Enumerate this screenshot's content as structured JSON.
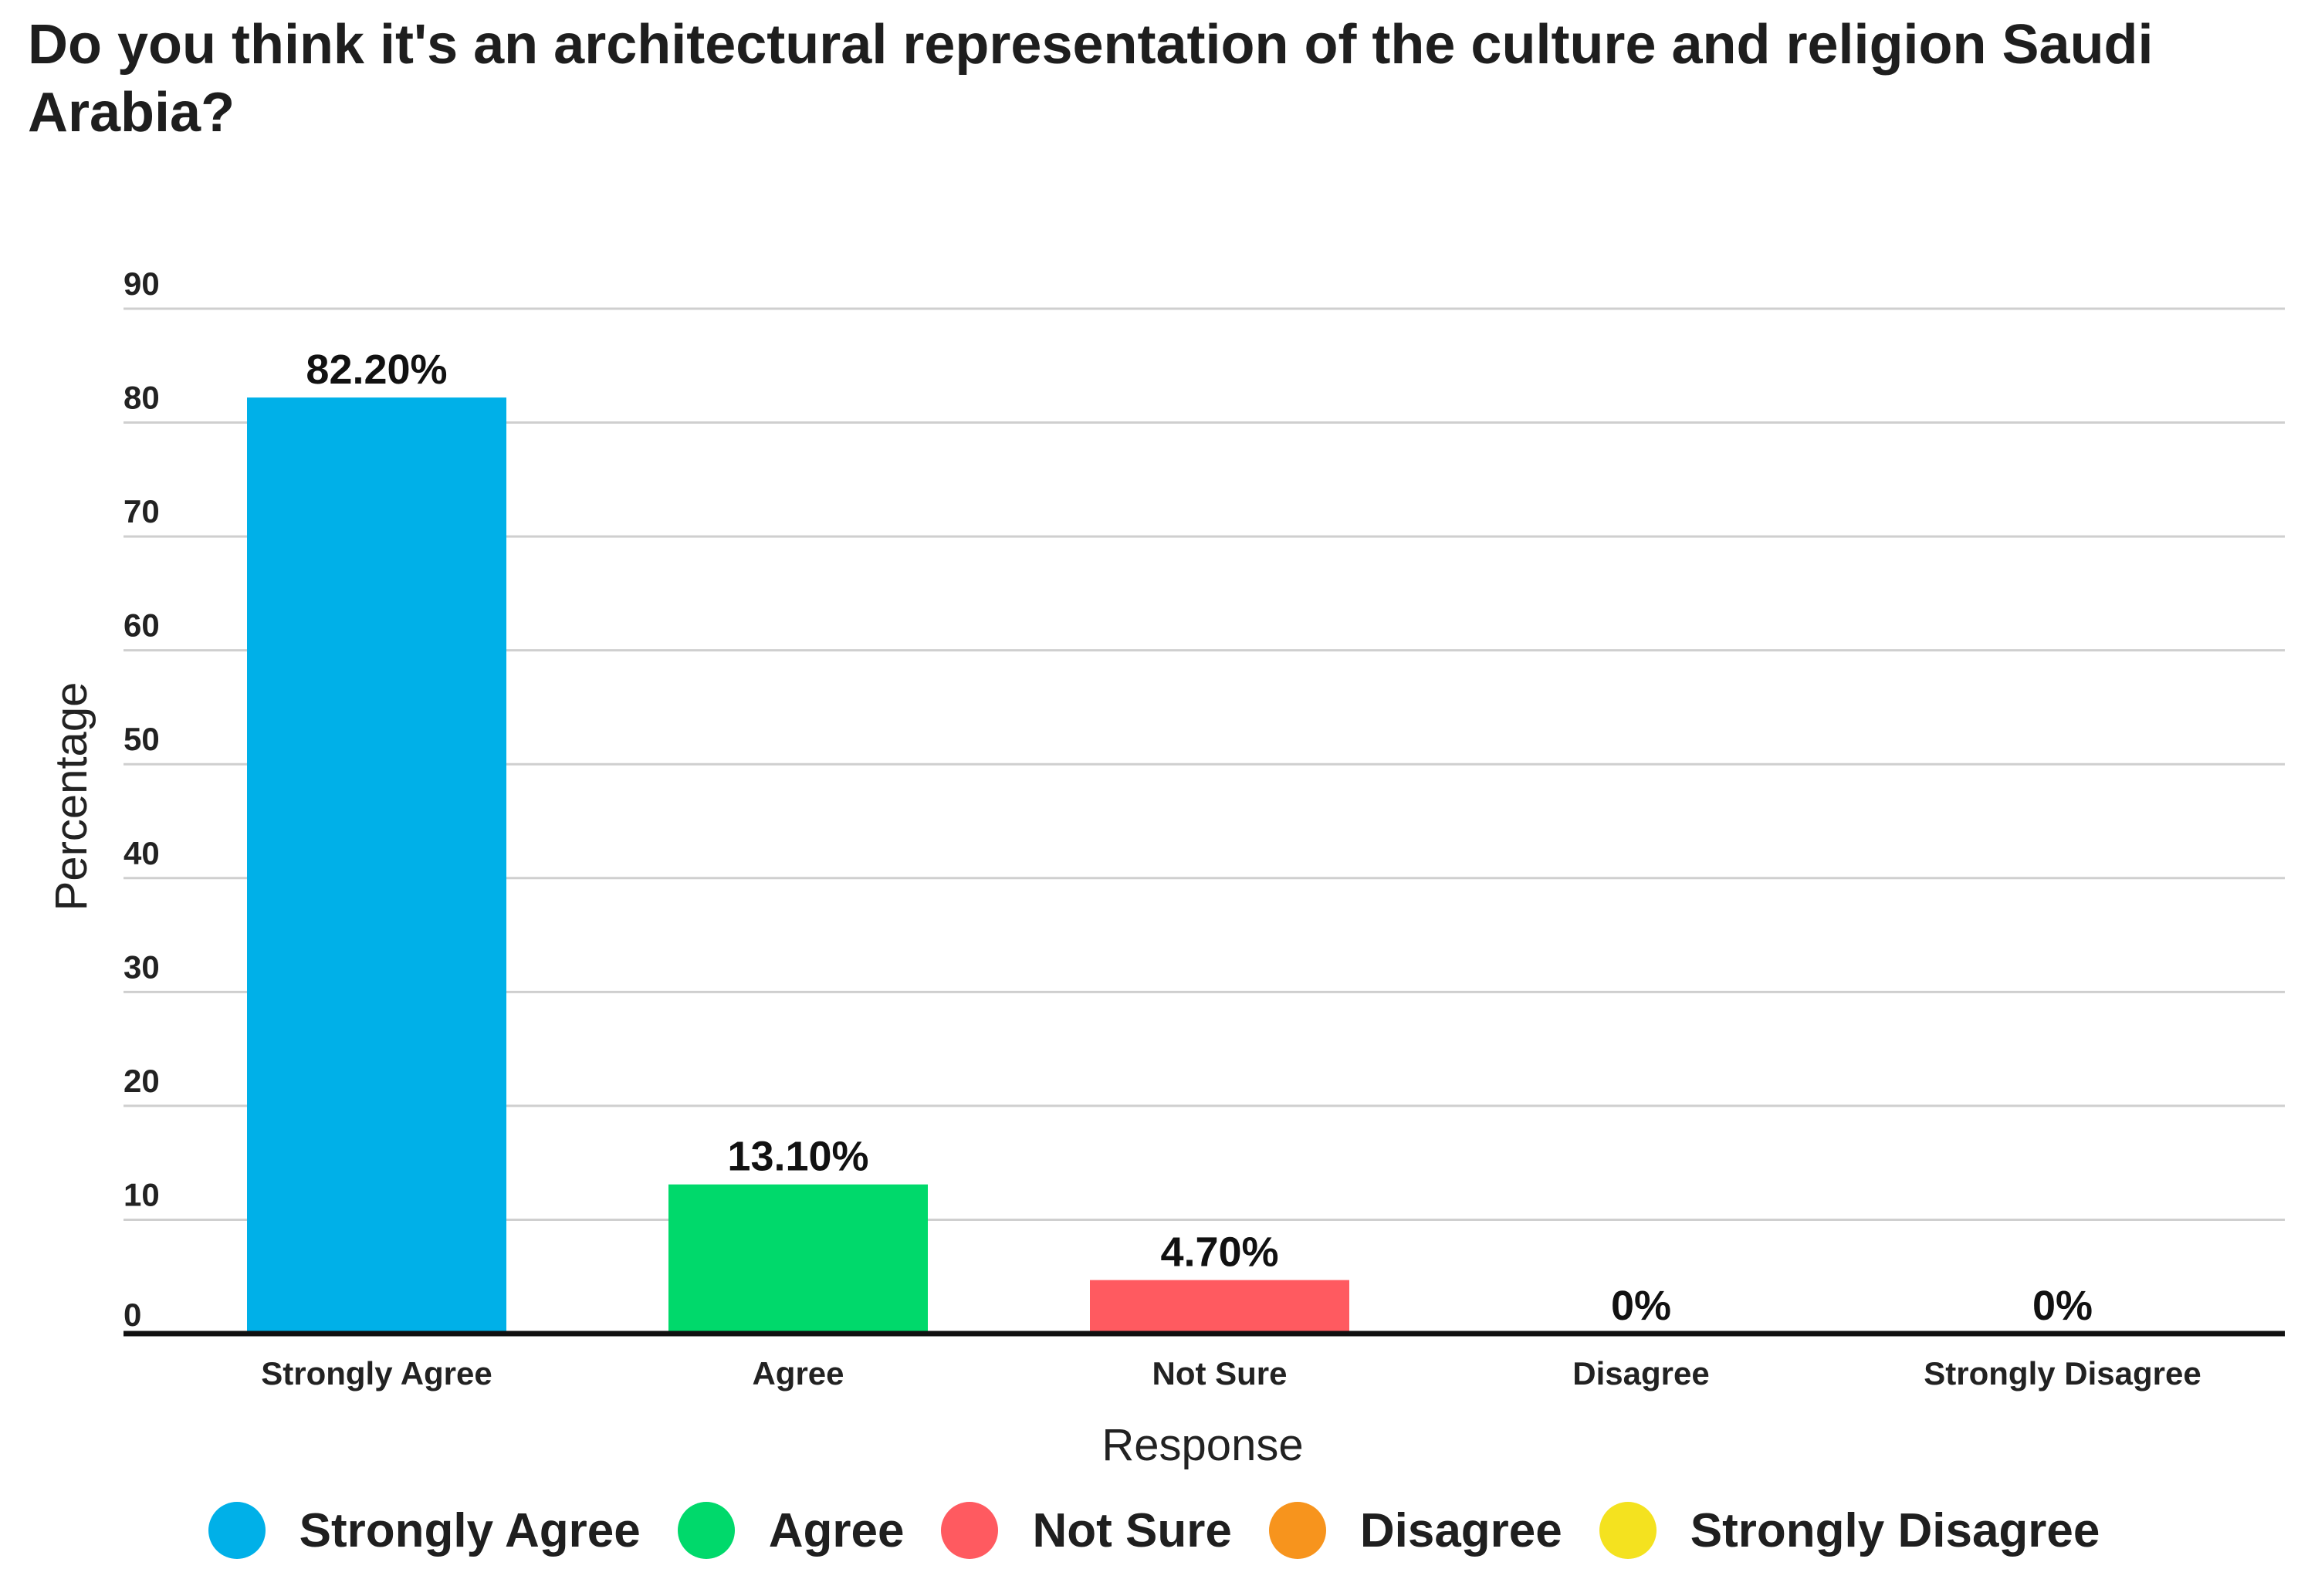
{
  "chart_data": {
    "type": "bar",
    "title": "Do you think it's an architectural representation of the culture and religion Saudi Arabia?",
    "xlabel": "Response",
    "ylabel": "Percentage",
    "ylim": [
      0,
      90
    ],
    "yticks": [
      0,
      10,
      20,
      30,
      40,
      50,
      60,
      70,
      80,
      90
    ],
    "grid": true,
    "categories": [
      "Strongly Agree",
      "Agree",
      "Not Sure",
      "Disagree",
      "Strongly Disagree"
    ],
    "values": [
      82.2,
      13.1,
      4.7,
      0,
      0
    ],
    "data_labels": [
      "82.20%",
      "13.10%",
      "4.70%",
      "0%",
      "0%"
    ],
    "colors": [
      "#00b0e8",
      "#00d96b",
      "#ff5a60",
      "#f7941d",
      "#f4e21f"
    ],
    "legend": {
      "position": "bottom",
      "entries": [
        "Strongly Agree",
        "Agree",
        "Not Sure",
        "Disagree",
        "Strongly Disagree"
      ]
    }
  }
}
